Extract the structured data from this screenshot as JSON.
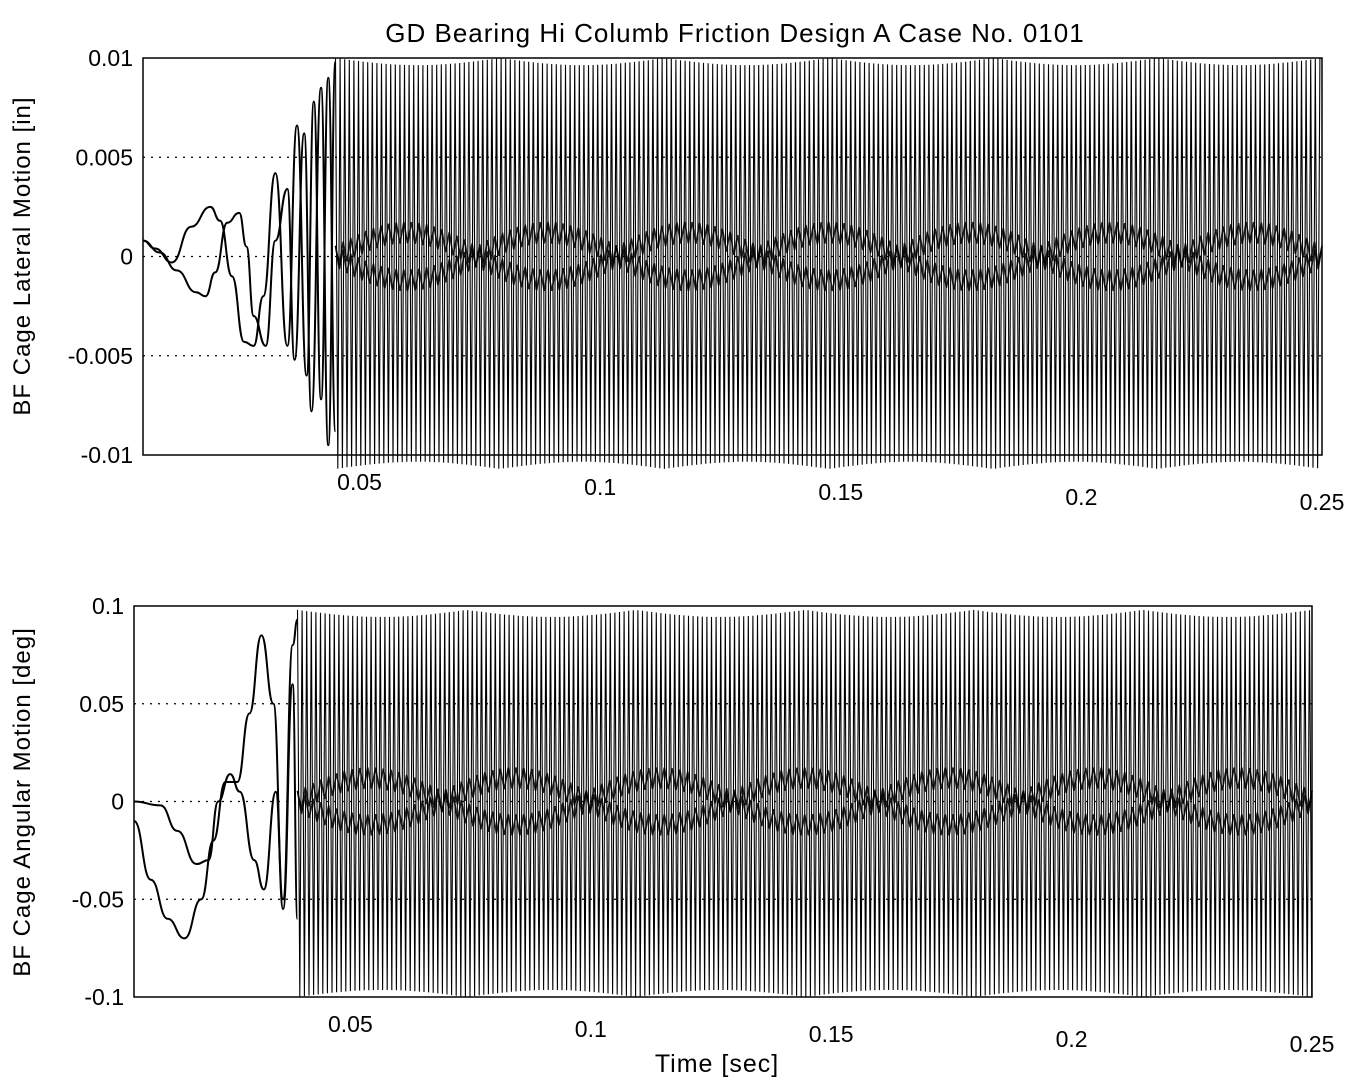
{
  "figure": {
    "title": "GD Bearing Hi Columb Friction Design A Case No. 0101"
  },
  "chart_data": [
    {
      "type": "line",
      "title": "GD Bearing Hi Columb Friction Design A Case No. 0101",
      "xlabel": "",
      "ylabel": "BF Cage Lateral Motion [in]",
      "xlim": [
        0.005,
        0.25
      ],
      "ylim": [
        -0.01,
        0.01
      ],
      "xticks": [
        "0.05",
        "0.1",
        "0.15",
        "0.2",
        "0.25"
      ],
      "xtick_values": [
        0.05,
        0.1,
        0.15,
        0.2,
        0.25
      ],
      "yticks": [
        "0.01",
        "0.005",
        "0",
        "-0.005",
        "-0.01"
      ],
      "ytick_values": [
        0.01,
        0.005,
        0,
        -0.005,
        -0.01
      ],
      "grid": "dotted-y",
      "series": [
        {
          "x": [
            0.005,
            0.0075,
            0.011,
            0.015,
            0.019,
            0.021,
            0.0235,
            0.026,
            0.028,
            0.03,
            0.0325,
            0.035,
            0.037,
            0.039,
            0.0405,
            0.042,
            0.0435,
            0.045
          ],
          "values": [
            0.0008,
            0.0004,
            -0.0003,
            0.0015,
            0.0025,
            0.0018,
            -0.001,
            -0.0043,
            -0.0045,
            -0.002,
            0.0042,
            -0.0045,
            0.0066,
            -0.006,
            0.0078,
            -0.0072,
            0.009,
            -0.0088
          ]
        },
        {
          "x": [
            0.005,
            0.0085,
            0.012,
            0.016,
            0.018,
            0.02,
            0.0225,
            0.025,
            0.0265,
            0.028,
            0.0305,
            0.0325,
            0.035,
            0.0365,
            0.0385,
            0.04,
            0.042,
            0.0435,
            0.045
          ],
          "values": [
            0.0008,
            0.0002,
            -0.0007,
            -0.0018,
            -0.002,
            -0.0008,
            0.0017,
            0.0022,
            0.0005,
            -0.003,
            -0.0045,
            0.0008,
            0.0034,
            -0.0052,
            0.0062,
            -0.0078,
            0.0085,
            -0.0095,
            0.0098
          ]
        }
      ],
      "oscillation": {
        "x_start": 0.045,
        "x_end": 0.25,
        "min": -0.0107,
        "max": 0.01,
        "envelope_amplitude": 0.0012
      }
    },
    {
      "type": "line",
      "title": "",
      "xlabel": "Time [sec]",
      "ylabel": "BF Cage Angular Motion [deg]",
      "xlim": [
        0.005,
        0.25
      ],
      "ylim": [
        -0.1,
        0.1
      ],
      "xticks": [
        "0.05",
        "0.1",
        "0.15",
        "0.2",
        "0.25"
      ],
      "xtick_values": [
        0.05,
        0.1,
        0.15,
        0.2,
        0.25
      ],
      "yticks": [
        "0.1",
        "0.05",
        "0",
        "-0.05",
        "-0.1"
      ],
      "ytick_values": [
        0.1,
        0.05,
        0,
        -0.05,
        -0.1
      ],
      "grid": "dotted-y",
      "series": [
        {
          "x": [
            0.005,
            0.0085,
            0.012,
            0.0155,
            0.019,
            0.0215,
            0.024,
            0.0265,
            0.029,
            0.0315,
            0.034,
            0.036,
            0.038,
            0.039
          ],
          "values": [
            -0.01,
            -0.04,
            -0.06,
            -0.07,
            -0.05,
            -0.02,
            0.01,
            0.01,
            0.045,
            0.085,
            0.05,
            -0.05,
            0.08,
            0.093
          ]
        },
        {
          "x": [
            0.005,
            0.0105,
            0.014,
            0.018,
            0.0205,
            0.0225,
            0.025,
            0.027,
            0.03,
            0.032,
            0.0345,
            0.036,
            0.038,
            0.039
          ],
          "values": [
            0.0,
            -0.002,
            -0.015,
            -0.032,
            -0.03,
            0.0,
            0.014,
            0.005,
            -0.03,
            -0.045,
            0.005,
            -0.055,
            0.06,
            -0.06
          ]
        }
      ],
      "oscillation": {
        "x_start": 0.039,
        "x_end": 0.25,
        "min": -0.1,
        "max": 0.098,
        "envelope_amplitude": 0.012
      }
    }
  ]
}
